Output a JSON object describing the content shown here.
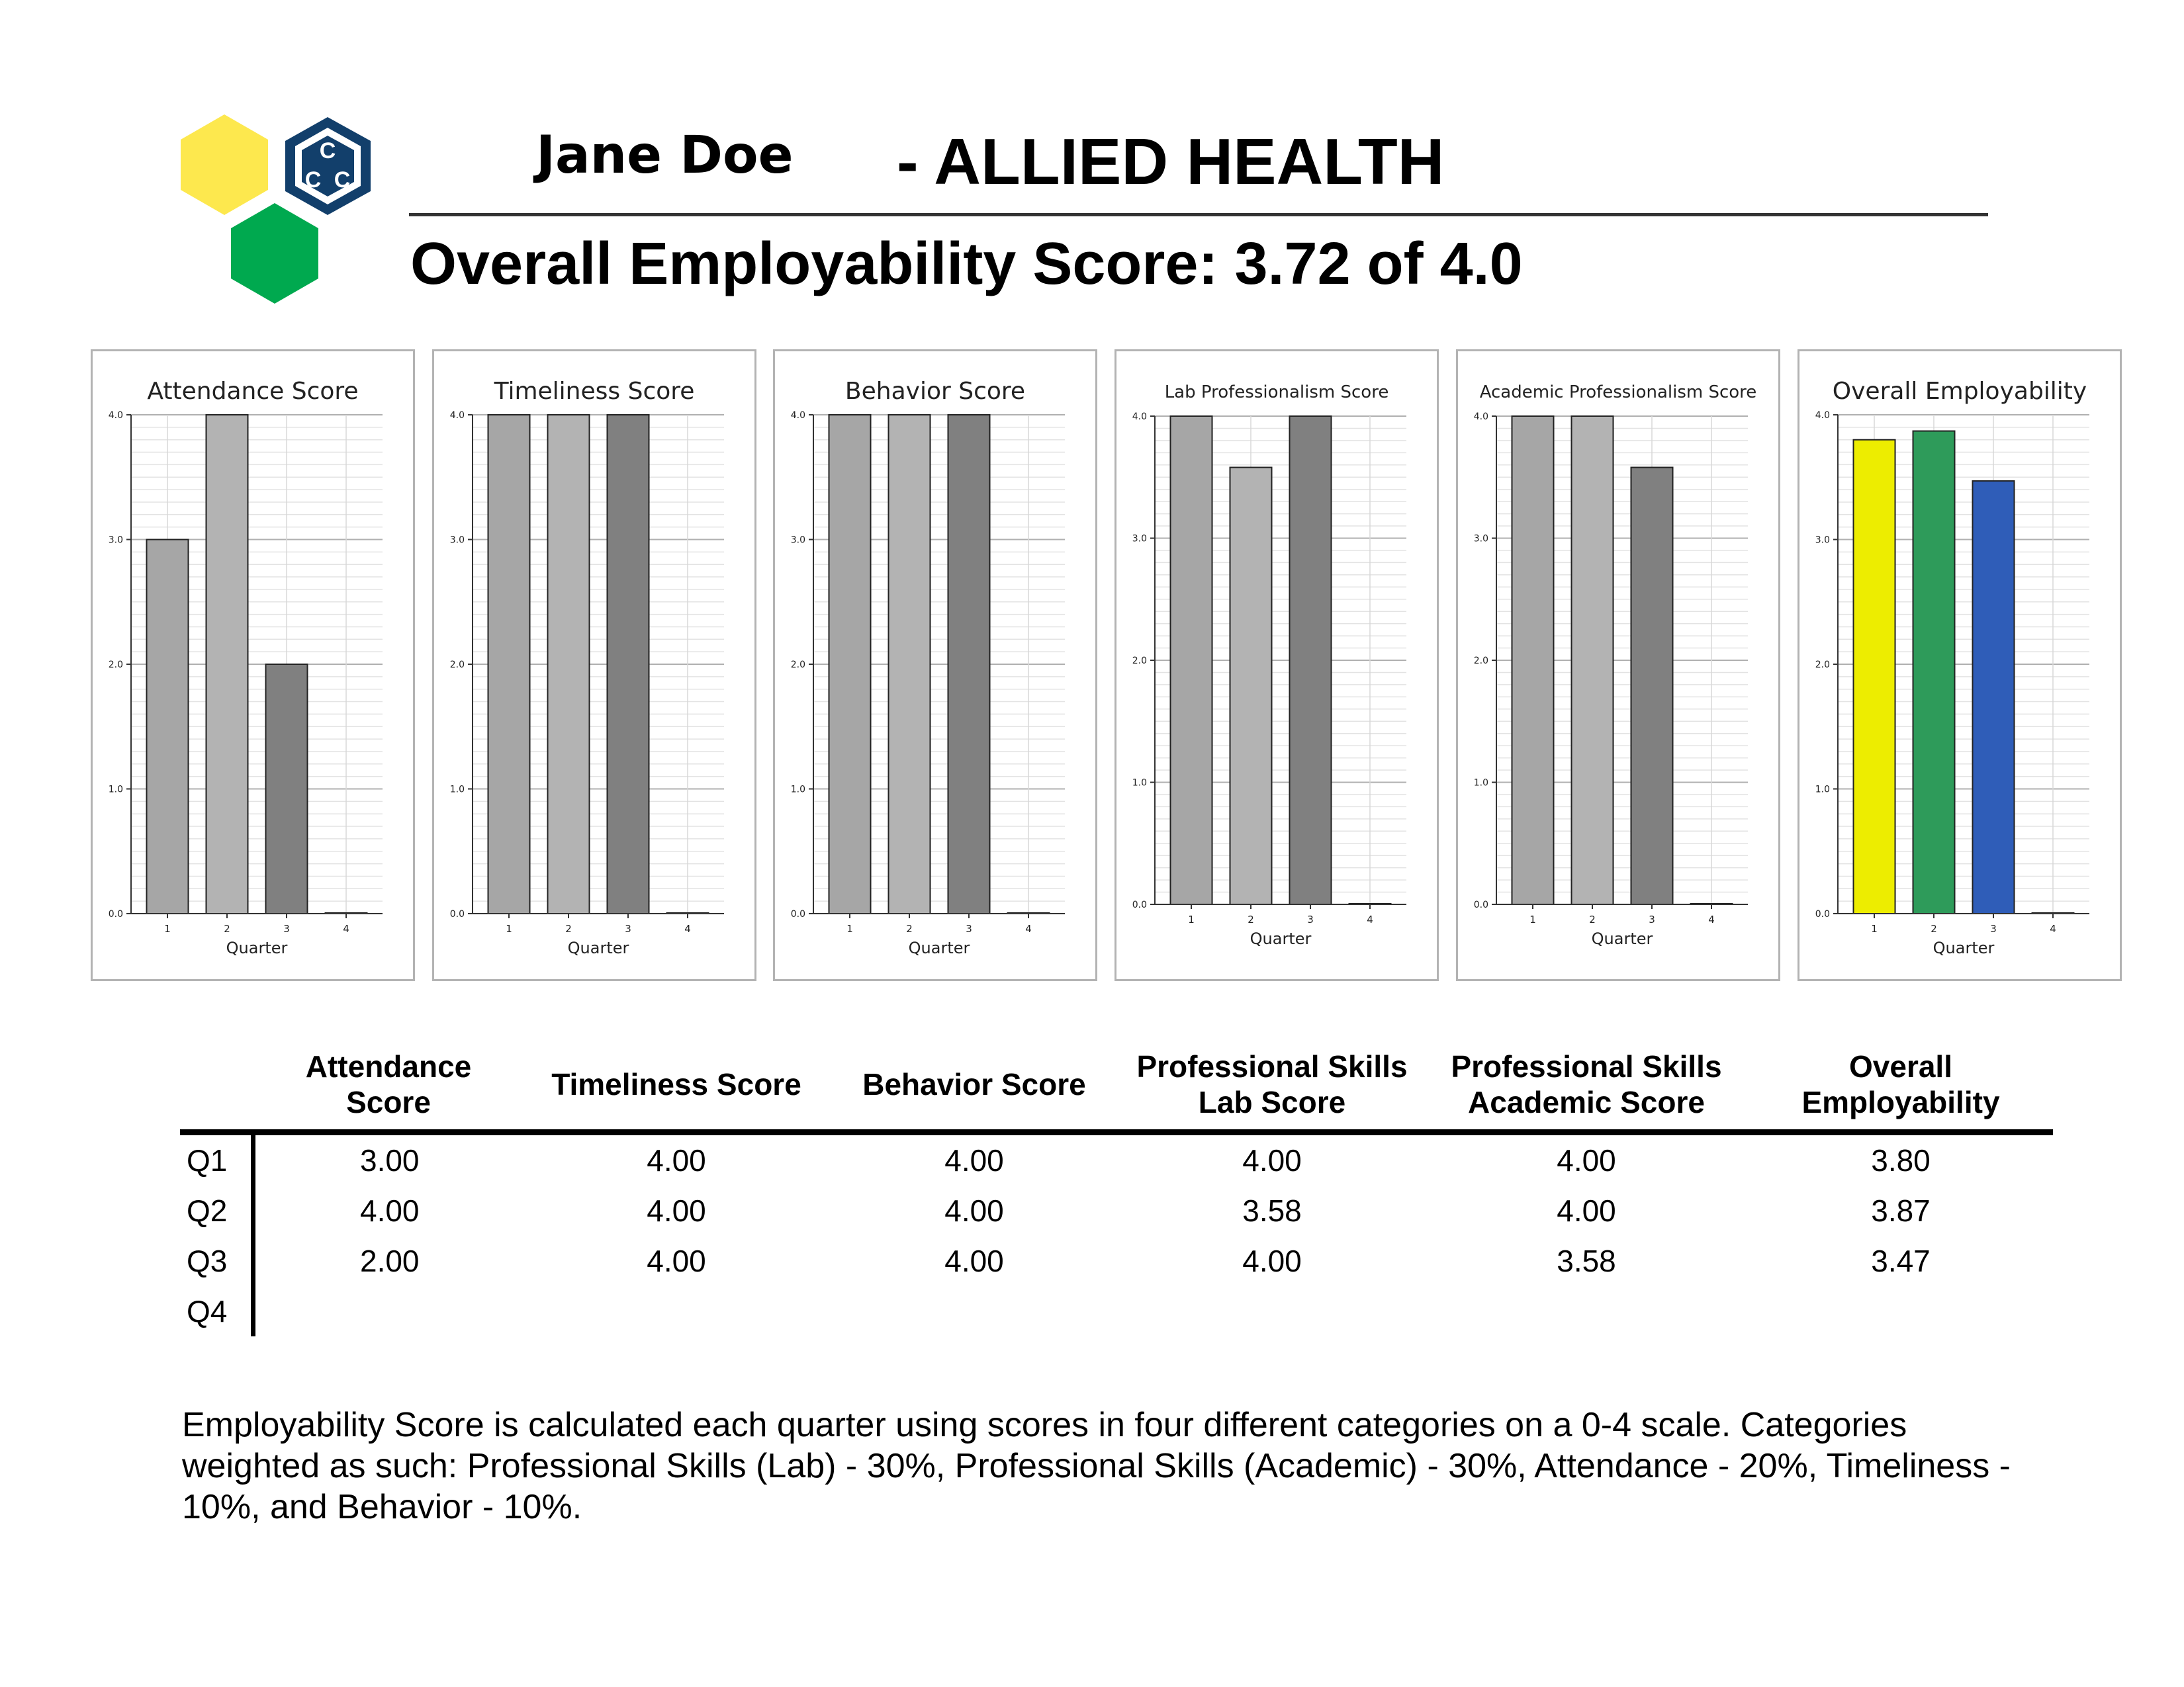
{
  "header": {
    "student_name": "Jane Doe",
    "program": "- ALLIED HEALTH",
    "overall_score_title": "Overall Employability Score: 3.72 of 4.0"
  },
  "logo": {
    "icon": "ccc-hexagon-logo-icon",
    "letters": "CCC",
    "colors": {
      "yellow": "#fde84e",
      "green": "#00a94f",
      "navy": "#123f6b"
    }
  },
  "chart_data": [
    {
      "type": "bar",
      "title": "Attendance Score",
      "xlabel": "Quarter",
      "ylabel": "",
      "categories": [
        "1",
        "2",
        "3",
        "4"
      ],
      "values": [
        3.0,
        4.0,
        2.0,
        0
      ],
      "ylim": [
        0,
        4.0
      ],
      "yticks": [
        "0.0",
        "1.0",
        "2.0",
        "3.0",
        "4.0"
      ],
      "colors": [
        "#a6a6a6",
        "#b3b3b3",
        "#808080",
        "#808080"
      ],
      "grid": true
    },
    {
      "type": "bar",
      "title": "Timeliness Score",
      "xlabel": "Quarter",
      "ylabel": "",
      "categories": [
        "1",
        "2",
        "3",
        "4"
      ],
      "values": [
        4.0,
        4.0,
        4.0,
        0
      ],
      "ylim": [
        0,
        4.0
      ],
      "yticks": [
        "0.0",
        "1.0",
        "2.0",
        "3.0",
        "4.0"
      ],
      "colors": [
        "#a6a6a6",
        "#b3b3b3",
        "#808080",
        "#808080"
      ],
      "grid": true
    },
    {
      "type": "bar",
      "title": "Behavior Score",
      "xlabel": "Quarter",
      "ylabel": "",
      "categories": [
        "1",
        "2",
        "3",
        "4"
      ],
      "values": [
        4.0,
        4.0,
        4.0,
        0
      ],
      "ylim": [
        0,
        4.0
      ],
      "yticks": [
        "0.0",
        "1.0",
        "2.0",
        "3.0",
        "4.0"
      ],
      "colors": [
        "#a6a6a6",
        "#b3b3b3",
        "#808080",
        "#808080"
      ],
      "grid": true
    },
    {
      "type": "bar",
      "title": "Lab Professionalism Score",
      "xlabel": "Quarter",
      "ylabel": "",
      "categories": [
        "1",
        "2",
        "3",
        "4"
      ],
      "values": [
        4.0,
        3.58,
        4.0,
        0
      ],
      "ylim": [
        0,
        4.0
      ],
      "yticks": [
        "0.0",
        "1.0",
        "2.0",
        "3.0",
        "4.0"
      ],
      "colors": [
        "#a6a6a6",
        "#b3b3b3",
        "#808080",
        "#808080"
      ],
      "grid": true
    },
    {
      "type": "bar",
      "title": "Academic Professionalism Score",
      "xlabel": "Quarter",
      "ylabel": "",
      "categories": [
        "1",
        "2",
        "3",
        "4"
      ],
      "values": [
        4.0,
        4.0,
        3.58,
        0
      ],
      "ylim": [
        0,
        4.0
      ],
      "yticks": [
        "0.0",
        "1.0",
        "2.0",
        "3.0",
        "4.0"
      ],
      "colors": [
        "#a6a6a6",
        "#b3b3b3",
        "#808080",
        "#808080"
      ],
      "grid": true
    },
    {
      "type": "bar",
      "title": "Overall Employability",
      "xlabel": "Quarter",
      "ylabel": "",
      "categories": [
        "1",
        "2",
        "3",
        "4"
      ],
      "values": [
        3.8,
        3.87,
        3.47,
        0
      ],
      "ylim": [
        0,
        4.0
      ],
      "yticks": [
        "0.0",
        "1.0",
        "2.0",
        "3.0",
        "4.0"
      ],
      "colors": [
        "#eded00",
        "#2e9b5a",
        "#2f5db8",
        "#808080"
      ],
      "grid": true
    }
  ],
  "table": {
    "headers": [
      "",
      "Attendance Score",
      "Timeliness Score",
      "Behavior Score",
      "Professional Skills Lab Score",
      "Professional Skills Academic Score",
      "Overall Employability"
    ],
    "rows": [
      {
        "q": "Q1",
        "cells": [
          "3.00",
          "4.00",
          "4.00",
          "4.00",
          "4.00",
          "3.80"
        ]
      },
      {
        "q": "Q2",
        "cells": [
          "4.00",
          "4.00",
          "4.00",
          "3.58",
          "4.00",
          "3.87"
        ]
      },
      {
        "q": "Q3",
        "cells": [
          "2.00",
          "4.00",
          "4.00",
          "4.00",
          "3.58",
          "3.47"
        ]
      },
      {
        "q": "Q4",
        "cells": [
          "",
          "",
          "",
          "",
          "",
          ""
        ]
      }
    ]
  },
  "note": "Employability Score is calculated each quarter using scores in four different categories on a 0-4 scale. Categories weighted as such: Professional Skills (Lab) - 30%, Professional Skills (Academic) - 30%, Attendance - 20%, Timeliness - 10%, and Behavior - 10%."
}
